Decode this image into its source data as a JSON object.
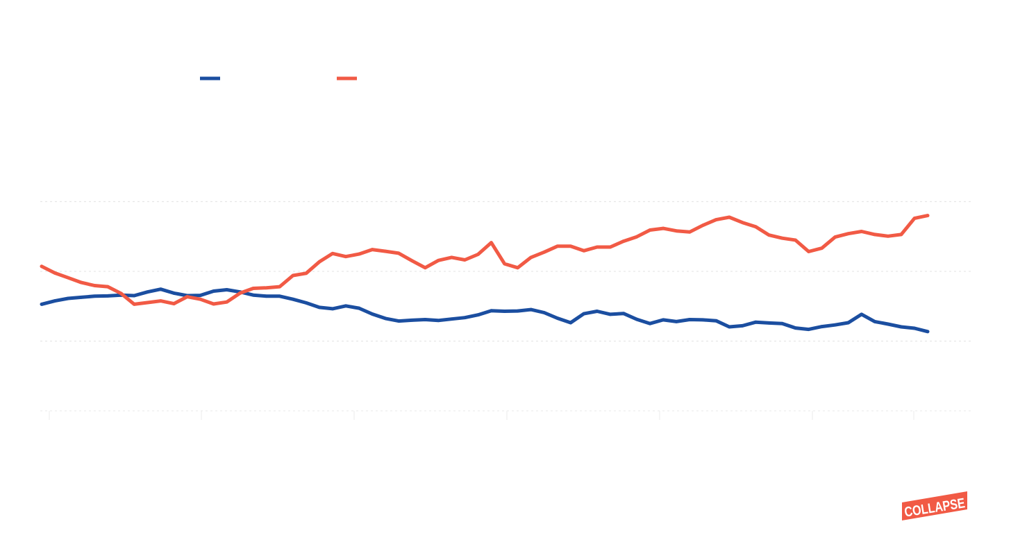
{
  "brand": {
    "logo_text": "COLLAPSE",
    "logo_color": "#f15a45",
    "logo_text_color": "#ffffff"
  },
  "colors": {
    "background": "#ffffff",
    "grid": "#e6e6e6",
    "series_1": "#1b4ea0",
    "series_2": "#f15a45"
  },
  "chart_data": {
    "type": "line",
    "title": "",
    "xlabel": "",
    "ylabel": "",
    "grid": true,
    "legend_placement": "top-left",
    "ylim": [
      0,
      100
    ],
    "series": [
      {
        "color": "#1b4ea0",
        "values": [
          38.2,
          39.4,
          40.3,
          40.7,
          41.1,
          41.2,
          41.5,
          41.3,
          42.6,
          43.6,
          42.2,
          41.3,
          41.4,
          42.9,
          43.4,
          42.6,
          41.5,
          41.1,
          41.1,
          40.0,
          38.7,
          37.1,
          36.6,
          37.6,
          36.8,
          34.7,
          33.1,
          32.2,
          32.5,
          32.7,
          32.4,
          32.9,
          33.4,
          34.4,
          35.9,
          35.7,
          35.8,
          36.3,
          35.2,
          33.2,
          31.6,
          34.8,
          35.7,
          34.6,
          34.9,
          32.8,
          31.3,
          32.6,
          32.0,
          32.7,
          32.6,
          32.3,
          30.1,
          30.5,
          31.8,
          31.5,
          31.3,
          29.7,
          29.2,
          30.2,
          30.8,
          31.6,
          34.6,
          32.0,
          31.1,
          30.1,
          29.6,
          28.4
        ]
      },
      {
        "color": "#f15a45",
        "values": [
          51.8,
          49.4,
          47.7,
          46.0,
          44.9,
          44.5,
          42.1,
          38.2,
          38.8,
          39.4,
          38.4,
          40.9,
          40.0,
          38.3,
          39.0,
          42.2,
          43.9,
          44.1,
          44.5,
          48.5,
          49.3,
          53.4,
          56.4,
          55.3,
          56.2,
          57.8,
          57.2,
          56.5,
          53.8,
          51.3,
          53.9,
          55.0,
          54.1,
          56.1,
          60.3,
          52.7,
          51.3,
          55.0,
          56.9,
          59.0,
          59.0,
          57.4,
          58.7,
          58.7,
          60.8,
          62.4,
          64.8,
          65.4,
          64.5,
          64.1,
          66.5,
          68.5,
          69.4,
          67.5,
          66.0,
          63.0,
          61.9,
          61.2,
          57.1,
          58.3,
          62.3,
          63.5,
          64.3,
          63.2,
          62.6,
          63.2,
          69.0,
          70.0
        ]
      }
    ]
  }
}
